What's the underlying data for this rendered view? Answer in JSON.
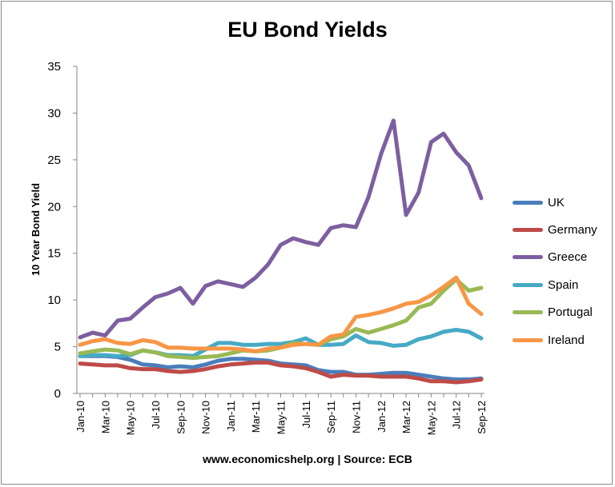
{
  "chart_data": {
    "type": "line",
    "title": "EU Bond Yields",
    "xlabel": "",
    "ylabel": "10 Year Bond Yield",
    "ylim": [
      0,
      35
    ],
    "yticks": [
      0,
      5,
      10,
      15,
      20,
      25,
      30,
      35
    ],
    "grid": false,
    "legend_position": "right",
    "x": [
      "Jan-10",
      "Feb-10",
      "Mar-10",
      "Apr-10",
      "May-10",
      "Jun-10",
      "Jul-10",
      "Aug-10",
      "Sep-10",
      "Oct-10",
      "Nov-10",
      "Dec-10",
      "Jan-11",
      "Feb-11",
      "Mar-11",
      "Apr-11",
      "May-11",
      "Jun-11",
      "Jul-11",
      "Aug-11",
      "Sep-11",
      "Oct-11",
      "Nov-11",
      "Dec-11",
      "Jan-12",
      "Feb-12",
      "Mar-12",
      "Apr-12",
      "May-12",
      "Jun-12",
      "Jul-12",
      "Aug-12",
      "Sep-12"
    ],
    "xtick_labels": [
      "Jan-10",
      "Mar-10",
      "May-10",
      "Jul-10",
      "Sep-10",
      "Nov-10",
      "Jan-11",
      "Mar-11",
      "May-11",
      "Jul-11",
      "Sep-11",
      "Nov-11",
      "Jan-12",
      "Mar-12",
      "May-12",
      "Jul-12",
      "Sep-12"
    ],
    "series": [
      {
        "name": "UK",
        "color": "#4a7ebb",
        "values": [
          4.0,
          4.0,
          4.0,
          3.9,
          3.6,
          3.1,
          3.0,
          2.8,
          2.9,
          2.8,
          3.1,
          3.5,
          3.7,
          3.7,
          3.6,
          3.5,
          3.2,
          3.1,
          3.0,
          2.5,
          2.3,
          2.3,
          2.0,
          2.0,
          2.1,
          2.2,
          2.2,
          2.0,
          1.8,
          1.6,
          1.5,
          1.5,
          1.6
        ]
      },
      {
        "name": "Germany",
        "color": "#be4b48",
        "values": [
          3.2,
          3.1,
          3.0,
          3.0,
          2.7,
          2.6,
          2.6,
          2.4,
          2.3,
          2.4,
          2.6,
          2.9,
          3.1,
          3.2,
          3.3,
          3.3,
          3.0,
          2.9,
          2.7,
          2.3,
          1.8,
          2.0,
          1.9,
          1.9,
          1.8,
          1.8,
          1.8,
          1.6,
          1.3,
          1.3,
          1.2,
          1.3,
          1.5
        ]
      },
      {
        "name": "Greece",
        "color": "#7d5fa0",
        "values": [
          6.0,
          6.5,
          6.2,
          7.8,
          8.0,
          9.2,
          10.3,
          10.7,
          11.3,
          9.6,
          11.5,
          12.0,
          11.7,
          11.4,
          12.4,
          13.8,
          15.9,
          16.6,
          16.2,
          15.9,
          17.7,
          18.0,
          17.8,
          21.0,
          25.6,
          29.2,
          19.1,
          21.5,
          26.9,
          27.8,
          25.8,
          24.4,
          20.9
        ]
      },
      {
        "name": "Spain",
        "color": "#46aac5",
        "values": [
          4.0,
          4.1,
          4.1,
          4.0,
          4.1,
          4.6,
          4.4,
          4.1,
          4.1,
          4.0,
          4.7,
          5.4,
          5.4,
          5.2,
          5.2,
          5.3,
          5.3,
          5.5,
          5.9,
          5.2,
          5.2,
          5.3,
          6.2,
          5.5,
          5.4,
          5.1,
          5.2,
          5.8,
          6.1,
          6.6,
          6.8,
          6.6,
          5.9
        ]
      },
      {
        "name": "Portugal",
        "color": "#98b954",
        "values": [
          4.3,
          4.5,
          4.7,
          4.6,
          4.2,
          4.6,
          4.4,
          4.0,
          3.9,
          3.8,
          3.9,
          4.0,
          4.3,
          4.6,
          4.5,
          4.6,
          4.9,
          5.4,
          5.3,
          5.2,
          5.8,
          6.1,
          6.9,
          6.5,
          6.9,
          7.3,
          7.8,
          9.2,
          9.6,
          11.0,
          12.2,
          11.0,
          11.3
        ]
      },
      {
        "name": "Ireland",
        "color": "#f79646",
        "values": [
          5.2,
          5.6,
          5.8,
          5.4,
          5.3,
          5.7,
          5.5,
          4.9,
          4.9,
          4.8,
          4.8,
          4.8,
          4.8,
          4.7,
          4.5,
          4.8,
          4.9,
          5.2,
          5.3,
          5.2,
          6.1,
          6.3,
          8.2,
          8.4,
          8.7,
          9.1,
          9.6,
          9.8,
          10.5,
          11.4,
          12.4,
          9.6,
          8.5
        ]
      }
    ]
  },
  "footer": "www.economicshelp.org | Source: ECB"
}
